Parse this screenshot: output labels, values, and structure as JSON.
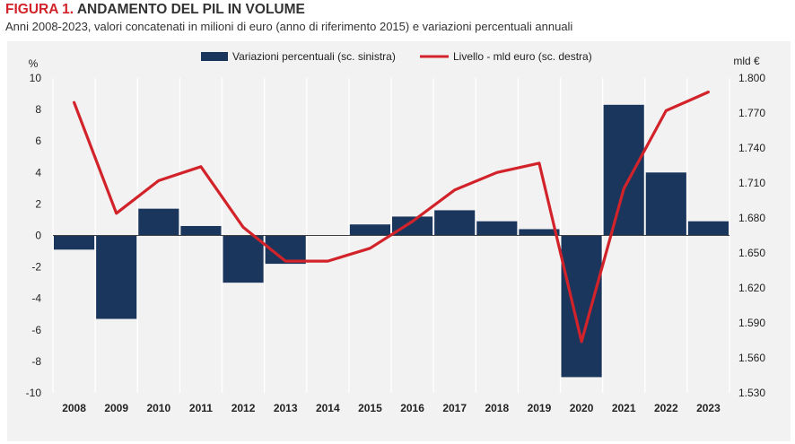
{
  "header": {
    "figure_label": "FIGURA 1.",
    "title": "ANDAMENTO DEL PIL IN VOLUME",
    "subtitle": "Anni 2008-2023, valori concatenati in milioni di euro (anno di riferimento 2015) e variazioni percentuali annuali"
  },
  "chart_data": {
    "type": "bar",
    "categories": [
      "2008",
      "2009",
      "2010",
      "2011",
      "2012",
      "2013",
      "2014",
      "2015",
      "2016",
      "2017",
      "2018",
      "2019",
      "2020",
      "2021",
      "2022",
      "2023"
    ],
    "series": [
      {
        "name": "Variazioni percentuali (sc. sinistra)",
        "type": "bar",
        "axis": "left",
        "color": "#1b365d",
        "values": [
          -0.9,
          -5.3,
          1.7,
          0.6,
          -3.0,
          -1.8,
          0.0,
          0.7,
          1.2,
          1.6,
          0.9,
          0.4,
          -9.0,
          8.3,
          4.0,
          0.9
        ]
      },
      {
        "name": "Livello - mld euro (sc. destra)",
        "type": "line",
        "axis": "right",
        "color": "#d2232a",
        "values": [
          1.779,
          1.684,
          1.712,
          1.724,
          1.672,
          1.643,
          1.643,
          1.654,
          1.677,
          1.704,
          1.719,
          1.727,
          1.574,
          1.705,
          1.772,
          1.788
        ]
      }
    ],
    "y_left": {
      "unit_label": "%",
      "range": [
        -10,
        10
      ],
      "ticks": [
        10,
        8,
        6,
        4,
        2,
        0,
        -2,
        -4,
        -6,
        -8,
        -10
      ],
      "tick_labels": [
        "10",
        "8",
        "6",
        "4",
        "2",
        "0",
        "-2",
        "-4",
        "-6",
        "-8",
        "-10"
      ]
    },
    "y_right": {
      "unit_label": "mld €",
      "range": [
        1.53,
        1.8
      ],
      "ticks": [
        1.8,
        1.77,
        1.74,
        1.71,
        1.68,
        1.65,
        1.62,
        1.59,
        1.56,
        1.53
      ],
      "tick_labels": [
        "1.800",
        "1.770",
        "1.740",
        "1.710",
        "1.680",
        "1.650",
        "1.620",
        "1.590",
        "1.560",
        "1.530"
      ]
    },
    "grid": true,
    "legend_position": "top"
  }
}
